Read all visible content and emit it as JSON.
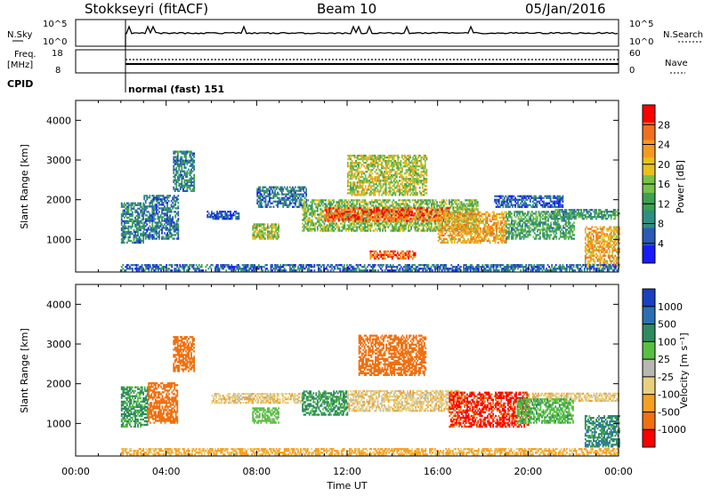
{
  "header": {
    "radar_title": "Stokkseyri (fitACF)",
    "beam_title": "Beam 10",
    "date_title": "05/Jan/2016"
  },
  "strip_labels": {
    "nsky": "N.Sky",
    "nsearch": "N.Search",
    "freq_line1": "Freq.",
    "freq_line2": "[MHz]",
    "nave": "Nave",
    "cpid": "CPID",
    "cpid_value": "normal (fast) 151"
  },
  "strip_ticks": {
    "noise_left": [
      "10^5",
      "10^0"
    ],
    "noise_right": [
      "10^5",
      "10^0"
    ],
    "freq_left": [
      "18",
      "8"
    ],
    "nave_right": [
      "60",
      "0"
    ]
  },
  "chart_data": [
    {
      "type": "heatmap",
      "name": "power-panel",
      "ylabel": "Slant Range [km]",
      "xlabel": "",
      "ylim": [
        180,
        4500
      ],
      "xlim_hours": [
        0,
        24
      ],
      "y_ticks": [
        "1000",
        "2000",
        "3000",
        "4000"
      ],
      "colorbar": {
        "label": "Power [dB]",
        "ticks": [
          "4",
          "8",
          "12",
          "16",
          "20",
          "24",
          "28"
        ],
        "colors": [
          "#1a1aff",
          "#2a5bb5",
          "#2f8f80",
          "#3fa050",
          "#78c24a",
          "#e8c020",
          "#f59a20",
          "#f07020",
          "#ff0000"
        ]
      },
      "echo_regions": [
        {
          "t0": 2.0,
          "t1": 3.0,
          "r0": 900,
          "r1": 1900,
          "v": 10
        },
        {
          "t0": 3.0,
          "t1": 4.5,
          "r0": 1000,
          "r1": 2100,
          "v": 9
        },
        {
          "t0": 4.3,
          "t1": 5.2,
          "r0": 2200,
          "r1": 3200,
          "v": 10
        },
        {
          "t0": 5.8,
          "t1": 7.2,
          "r0": 1500,
          "r1": 1700,
          "v": 6
        },
        {
          "t0": 7.8,
          "t1": 9.0,
          "r0": 1000,
          "r1": 1400,
          "v": 17
        },
        {
          "t0": 8.0,
          "t1": 10.2,
          "r0": 1800,
          "r1": 2300,
          "v": 9
        },
        {
          "t0": 10.0,
          "t1": 17.8,
          "r0": 1200,
          "r1": 2000,
          "v": 16
        },
        {
          "t0": 11.0,
          "t1": 16.5,
          "r0": 1450,
          "r1": 1800,
          "v": 26
        },
        {
          "t0": 12.0,
          "t1": 15.5,
          "r0": 2100,
          "r1": 3100,
          "v": 18
        },
        {
          "t0": 13.0,
          "t1": 15.0,
          "r0": 500,
          "r1": 700,
          "v": 26
        },
        {
          "t0": 16.0,
          "t1": 19.0,
          "r0": 900,
          "r1": 1700,
          "v": 22
        },
        {
          "t0": 18.5,
          "t1": 21.5,
          "r0": 1800,
          "r1": 2100,
          "v": 7
        },
        {
          "t0": 19.0,
          "t1": 22.0,
          "r0": 1000,
          "r1": 1700,
          "v": 13
        },
        {
          "t0": 21.0,
          "t1": 24.0,
          "r0": 1500,
          "r1": 1750,
          "v": 12
        },
        {
          "t0": 22.5,
          "t1": 24.0,
          "r0": 300,
          "r1": 1300,
          "v": 22
        },
        {
          "t0": 2.0,
          "t1": 24.0,
          "r0": 200,
          "r1": 350,
          "v": 8
        }
      ]
    },
    {
      "type": "heatmap",
      "name": "velocity-panel",
      "ylabel": "Slant Range [km]",
      "xlabel": "Time UT",
      "ylim": [
        180,
        4500
      ],
      "xlim_hours": [
        0,
        24
      ],
      "y_ticks": [
        "1000",
        "2000",
        "3000",
        "4000"
      ],
      "x_ticks": [
        "00:00",
        "04:00",
        "08:00",
        "12:00",
        "16:00",
        "20:00",
        "00:00"
      ],
      "colorbar": {
        "label": "Velocity [m s⁻¹]",
        "ticks": [
          "1000",
          "500",
          "100",
          "25",
          "-25",
          "-100",
          "-500",
          "-1000"
        ],
        "colors": [
          "#1a3fc0",
          "#2a70b0",
          "#2f8a60",
          "#58c040",
          "#b8b8b0",
          "#e8d080",
          "#f5a020",
          "#f07010",
          "#ff0000"
        ]
      },
      "echo_regions": [
        {
          "t0": 2.0,
          "t1": 3.2,
          "r0": 900,
          "r1": 1900,
          "v": 300
        },
        {
          "t0": 3.2,
          "t1": 4.5,
          "r0": 1000,
          "r1": 2000,
          "v": -200
        },
        {
          "t0": 4.3,
          "t1": 5.2,
          "r0": 2300,
          "r1": 3200,
          "v": -300
        },
        {
          "t0": 6.0,
          "t1": 10.0,
          "r0": 1500,
          "r1": 1750,
          "v": 0
        },
        {
          "t0": 7.8,
          "t1": 9.0,
          "r0": 1000,
          "r1": 1400,
          "v": 150
        },
        {
          "t0": 10.0,
          "t1": 12.0,
          "r0": 1200,
          "r1": 1800,
          "v": 300
        },
        {
          "t0": 12.0,
          "t1": 17.0,
          "r0": 1300,
          "r1": 1800,
          "v": 0
        },
        {
          "t0": 12.5,
          "t1": 15.5,
          "r0": 2200,
          "r1": 3200,
          "v": -300
        },
        {
          "t0": 16.5,
          "t1": 20.0,
          "r0": 900,
          "r1": 1800,
          "v": -600
        },
        {
          "t0": 20.0,
          "t1": 24.0,
          "r0": 1550,
          "r1": 1750,
          "v": 0
        },
        {
          "t0": 19.5,
          "t1": 22.0,
          "r0": 1000,
          "r1": 1600,
          "v": 200
        },
        {
          "t0": 22.5,
          "t1": 24.0,
          "r0": 400,
          "r1": 1200,
          "v": 400
        },
        {
          "t0": 2.0,
          "t1": 24.0,
          "r0": 200,
          "r1": 350,
          "v": -40
        }
      ]
    }
  ]
}
